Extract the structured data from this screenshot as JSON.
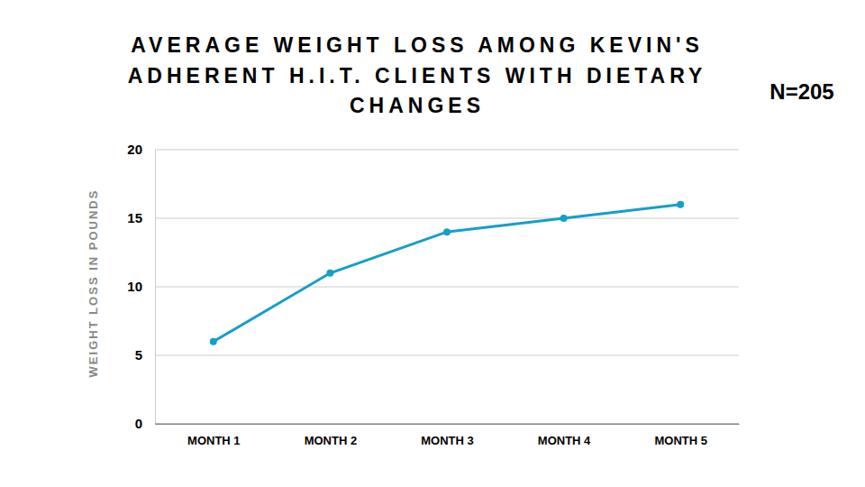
{
  "chart_data": {
    "type": "line",
    "title": "AVERAGE WEIGHT LOSS AMONG KEVIN'S ADHERENT H.I.T. CLIENTS WITH DIETARY CHANGES",
    "y_label": "WEIGHT LOSS IN POUNDS",
    "annotations": [
      "N=205"
    ],
    "categories": [
      "MONTH 1",
      "MONTH 2",
      "MONTH 3",
      "MONTH 4",
      "MONTH 5"
    ],
    "values": [
      6,
      11,
      14,
      15,
      16
    ],
    "color": "#159fc9",
    "marker": "circle",
    "ylim": [
      0,
      20
    ],
    "yticks": [
      0,
      5,
      10,
      15,
      20
    ],
    "grid": true
  }
}
